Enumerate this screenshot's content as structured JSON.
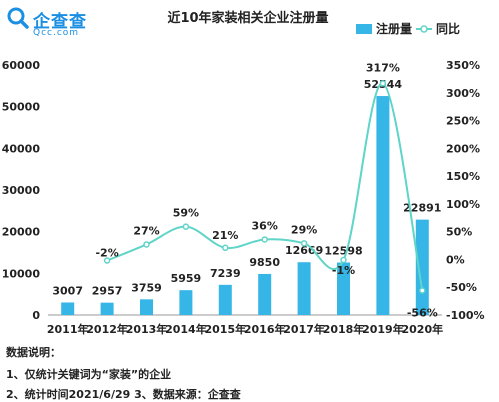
{
  "brand": {
    "name": "企查查",
    "sub": "Qcc.com"
  },
  "colors": {
    "bar": "#35b6e6",
    "line": "#5fd4c8",
    "brand": "#1a8fe3",
    "text": "#222222",
    "axis": "#999999"
  },
  "chart_data": {
    "type": "bar",
    "title": "近10年家装相关企业注册量",
    "categories": [
      "2011年",
      "2012年",
      "2013年",
      "2014年",
      "2015年",
      "2016年",
      "2017年",
      "2018年",
      "2019年",
      "2020年"
    ],
    "series": [
      {
        "name": "注册量",
        "type": "bar",
        "axis": "left",
        "values": [
          3007,
          2957,
          3759,
          5959,
          7239,
          9850,
          12669,
          12598,
          52544,
          22891
        ],
        "labels": [
          "3007",
          "2957",
          "3759",
          "5959",
          "7239",
          "9850",
          "12669",
          "12598",
          "52544",
          "22891"
        ]
      },
      {
        "name": "同比",
        "type": "line",
        "axis": "right",
        "values": [
          null,
          -2,
          27,
          59,
          21,
          36,
          29,
          -1,
          317,
          -56
        ],
        "labels": [
          "",
          "-2%",
          "27%",
          "59%",
          "21%",
          "36%",
          "29%",
          "-1%",
          "317%",
          "-56%"
        ]
      }
    ],
    "y_left": {
      "min": 0,
      "max": 60000,
      "ticks": [
        "0",
        "10000",
        "20000",
        "30000",
        "40000",
        "50000",
        "60000"
      ]
    },
    "y_right": {
      "min": -100,
      "max": 350,
      "ticks": [
        "-100%",
        "-50%",
        "0%",
        "50%",
        "100%",
        "150%",
        "200%",
        "250%",
        "300%",
        "350%"
      ]
    },
    "legend_position": "top-right",
    "grid": false
  },
  "notes": {
    "title": "数据说明：",
    "line1": "1、仅统计关键词为“家装”的企业",
    "line2": "2、统计时间2021/6/29   3、数据来源：企查查"
  }
}
